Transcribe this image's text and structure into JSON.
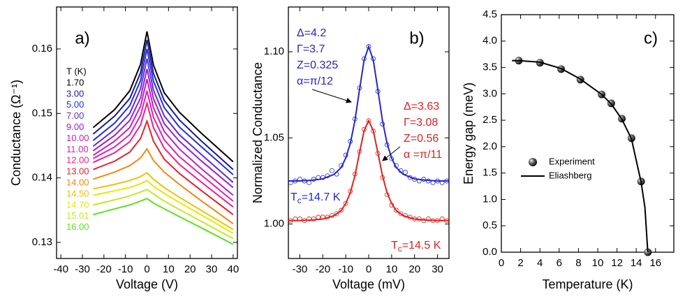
{
  "chart_data": [
    {
      "type": "line",
      "title": "a)",
      "xlabel": "Voltage (V)",
      "ylabel": "Conductance (Ω⁻¹)",
      "legend_title": "T (K)",
      "legend": "upper left",
      "x": [
        -25,
        -15,
        -8,
        -3,
        0,
        3,
        8,
        15,
        25,
        40
      ],
      "xlim": [
        -42,
        42
      ],
      "xticks": [
        -40,
        -30,
        -20,
        -10,
        0,
        10,
        20,
        30,
        40
      ],
      "ylim": [
        0.1275,
        0.1665
      ],
      "yticks": [
        0.13,
        0.14,
        0.15,
        0.16
      ],
      "series": [
        {
          "name": "1.70",
          "color": "#000000",
          "values": [
            0.1478,
            0.1506,
            0.1535,
            0.1576,
            0.1627,
            0.1575,
            0.1532,
            0.1502,
            0.147,
            0.1425
          ]
        },
        {
          "name": "3.00",
          "color": "#1a1a9a",
          "values": [
            0.1468,
            0.1496,
            0.1523,
            0.1563,
            0.1614,
            0.1562,
            0.152,
            0.149,
            0.1458,
            0.1413
          ]
        },
        {
          "name": "5.00",
          "color": "#2030e0",
          "values": [
            0.1458,
            0.1485,
            0.1512,
            0.1551,
            0.16,
            0.155,
            0.1509,
            0.1479,
            0.1449,
            0.1405
          ]
        },
        {
          "name": "7.00",
          "color": "#5a2ae0",
          "values": [
            0.1449,
            0.1475,
            0.15,
            0.1538,
            0.1585,
            0.1536,
            0.1496,
            0.1467,
            0.1437,
            0.1393
          ]
        },
        {
          "name": "9.00",
          "color": "#9a20d0",
          "values": [
            0.1442,
            0.1466,
            0.1489,
            0.1524,
            0.1569,
            0.1523,
            0.1484,
            0.1457,
            0.1427,
            0.1385
          ]
        },
        {
          "name": "10.00",
          "color": "#c020c0",
          "values": [
            0.1435,
            0.1457,
            0.1478,
            0.1511,
            0.1553,
            0.1509,
            0.1472,
            0.1445,
            0.1415,
            0.1373
          ]
        },
        {
          "name": "11.00",
          "color": "#e020b0",
          "values": [
            0.143,
            0.1448,
            0.1467,
            0.1497,
            0.1535,
            0.1494,
            0.1459,
            0.1433,
            0.1405,
            0.1364
          ]
        },
        {
          "name": "12.00",
          "color": "#f0208a",
          "values": [
            0.1424,
            0.1439,
            0.1456,
            0.1482,
            0.1516,
            0.1478,
            0.1446,
            0.1421,
            0.1394,
            0.1355
          ]
        },
        {
          "name": "13.00",
          "color": "#e8202a",
          "values": [
            0.1413,
            0.1426,
            0.144,
            0.1461,
            0.1488,
            0.1457,
            0.1429,
            0.1407,
            0.1381,
            0.1343
          ]
        },
        {
          "name": "14.00",
          "color": "#f08a10",
          "values": [
            0.1398,
            0.1409,
            0.1419,
            0.1431,
            0.1445,
            0.1427,
            0.1409,
            0.139,
            0.1365,
            0.1329
          ]
        },
        {
          "name": "14.50",
          "color": "#f5c000",
          "values": [
            0.1383,
            0.139,
            0.1396,
            0.1402,
            0.1408,
            0.1398,
            0.1385,
            0.137,
            0.135,
            0.132
          ]
        },
        {
          "name": "14.70",
          "color": "#e8e800",
          "values": [
            0.1373,
            0.138,
            0.1385,
            0.1391,
            0.1396,
            0.1387,
            0.1376,
            0.1362,
            0.1343,
            0.1314
          ]
        },
        {
          "name": "15.01",
          "color": "#c0ec20",
          "values": [
            0.1358,
            0.1366,
            0.1372,
            0.1378,
            0.1382,
            0.1375,
            0.1364,
            0.1351,
            0.1333,
            0.1306
          ]
        },
        {
          "name": "16.00",
          "color": "#60e020",
          "values": [
            0.1343,
            0.1352,
            0.1358,
            0.1364,
            0.1368,
            0.1361,
            0.1352,
            0.134,
            0.1323,
            0.1297
          ]
        }
      ]
    },
    {
      "type": "line",
      "title": "b)",
      "xlabel": "Voltage (mV)",
      "ylabel": "Normalized Conductance",
      "xlim": [
        -35,
        35
      ],
      "xticks": [
        -30,
        -20,
        -10,
        0,
        10,
        20,
        30
      ],
      "ylim": [
        0.98,
        1.126
      ],
      "yticks": [
        {
          "value": 1,
          "label": "1.00"
        },
        {
          "value": 1.05,
          "label": "1.05"
        },
        {
          "value": 1.1,
          "label": "1.10"
        }
      ],
      "series": [
        {
          "color": "#2424cc",
          "mode": "markers",
          "marker": "circle-open",
          "x": [
            -34,
            -32,
            -30,
            -28,
            -26,
            -24,
            -22,
            -20,
            -18,
            -16,
            -14,
            -12,
            -10,
            -8,
            -6,
            -4,
            -2,
            0,
            2,
            4,
            6,
            8,
            10,
            12,
            14,
            16,
            18,
            20,
            22,
            24,
            26,
            28,
            30,
            32,
            34
          ],
          "values": [
            1.024,
            1.025,
            1.026,
            1.025,
            1.024,
            1.026,
            1.027,
            1.027,
            1.028,
            1.031,
            1.029,
            1.034,
            1.04,
            1.048,
            1.061,
            1.079,
            1.096,
            1.103,
            1.096,
            1.077,
            1.058,
            1.046,
            1.038,
            1.034,
            1.031,
            1.03,
            1.027,
            1.026,
            1.025,
            1.026,
            1.025,
            1.024,
            1.025,
            1.024,
            1.025
          ]
        },
        {
          "color": "#2424cc",
          "mode": "line",
          "x": [
            -35,
            -30,
            -25,
            -20,
            -15,
            -12,
            -10,
            -8,
            -6,
            -4,
            -2,
            0,
            2,
            4,
            6,
            8,
            10,
            12,
            15,
            20,
            25,
            30,
            35
          ],
          "values": [
            1.025,
            1.025,
            1.0254,
            1.0262,
            1.0289,
            1.0328,
            1.0383,
            1.0468,
            1.0601,
            1.078,
            1.0952,
            1.103,
            1.0952,
            1.078,
            1.0601,
            1.0468,
            1.0383,
            1.0328,
            1.0289,
            1.0262,
            1.0254,
            1.025,
            1.025
          ]
        },
        {
          "color": "#e02020",
          "mode": "markers",
          "marker": "circle-open",
          "x": [
            -34,
            -32,
            -30,
            -28,
            -26,
            -24,
            -22,
            -20,
            -18,
            -16,
            -14,
            -12,
            -10,
            -8,
            -6,
            -4,
            -2,
            0,
            2,
            4,
            6,
            8,
            10,
            12,
            14,
            16,
            18,
            20,
            22,
            24,
            26,
            28,
            30,
            32,
            34
          ],
          "values": [
            1.002,
            1.003,
            1.003,
            1.002,
            1.003,
            1.003,
            1.004,
            1.004,
            1.004,
            1.005,
            1.006,
            1.008,
            1.012,
            1.019,
            1.029,
            1.042,
            1.055,
            1.06,
            1.054,
            1.041,
            1.027,
            1.017,
            1.011,
            1.008,
            1.006,
            1.005,
            1.004,
            1.003,
            1.003,
            1.002,
            1.003,
            1.002,
            1.002,
            1.003,
            1.002
          ]
        },
        {
          "color": "#e02020",
          "mode": "line",
          "x": [
            -35,
            -30,
            -25,
            -20,
            -15,
            -12,
            -10,
            -8,
            -6,
            -4,
            -2,
            0,
            2,
            4,
            6,
            8,
            10,
            12,
            15,
            20,
            25,
            30,
            35
          ],
          "values": [
            1.002,
            1.002,
            1.0023,
            1.0029,
            1.0049,
            1.0078,
            1.0119,
            1.0182,
            1.0281,
            1.0414,
            1.0542,
            1.06,
            1.0542,
            1.0414,
            1.0281,
            1.0182,
            1.0119,
            1.0078,
            1.0049,
            1.0029,
            1.0023,
            1.002,
            1.002
          ]
        }
      ],
      "annotations": [
        {
          "color": "#2424cc",
          "lines": [
            "Δ=4.2",
            "Γ=3.7",
            "Z=0.325",
            "α=π/12"
          ]
        },
        {
          "color": "#e02020",
          "lines": [
            "Δ=3.63",
            "Γ=3.08",
            "Z=0.56",
            "α =π/11"
          ]
        }
      ],
      "tc_labels": [
        {
          "color": "#2424cc",
          "main": "T",
          "sub": "c",
          "rest": "=14.7 K"
        },
        {
          "color": "#e02020",
          "main": "T",
          "sub": "c",
          "rest": "=14.5 K"
        }
      ]
    },
    {
      "type": "line",
      "title": "c)",
      "xlabel": "Temperature (K)",
      "ylabel": "Energy gap (meV)",
      "legend": "center left",
      "xlim": [
        0,
        17.9
      ],
      "xticks": [
        0,
        2,
        4,
        6,
        8,
        10,
        12,
        14,
        16
      ],
      "ylim": [
        0,
        4.5
      ],
      "yticks": [
        {
          "value": 0,
          "label": "0.0"
        },
        0.5,
        {
          "value": 1,
          "label": "1.0"
        },
        1.5,
        {
          "value": 2,
          "label": "2.0"
        },
        2.5,
        {
          "value": 3,
          "label": "3.0"
        },
        3.5,
        {
          "value": 4,
          "label": "4.0"
        },
        4.5
      ],
      "series": [
        {
          "name": "Experiment",
          "color": "#000000",
          "mode": "markers",
          "marker": "sphere",
          "x": [
            1.8,
            4.0,
            6.2,
            8.2,
            10.4,
            11.4,
            12.5,
            13.5,
            14.5,
            15.2
          ],
          "values": [
            3.63,
            3.59,
            3.47,
            3.27,
            2.99,
            2.82,
            2.53,
            2.16,
            1.34,
            0
          ]
        },
        {
          "name": "Eliashberg",
          "color": "#000000",
          "mode": "line",
          "x": [
            1.1,
            1.8,
            4,
            6.2,
            8.2,
            10.4,
            11.4,
            12.5,
            13.5,
            14.5,
            14.9,
            15.2
          ],
          "values": [
            3.63,
            3.63,
            3.6,
            3.48,
            3.28,
            2.99,
            2.81,
            2.52,
            2.15,
            1.33,
            0.85,
            0
          ]
        }
      ]
    }
  ]
}
